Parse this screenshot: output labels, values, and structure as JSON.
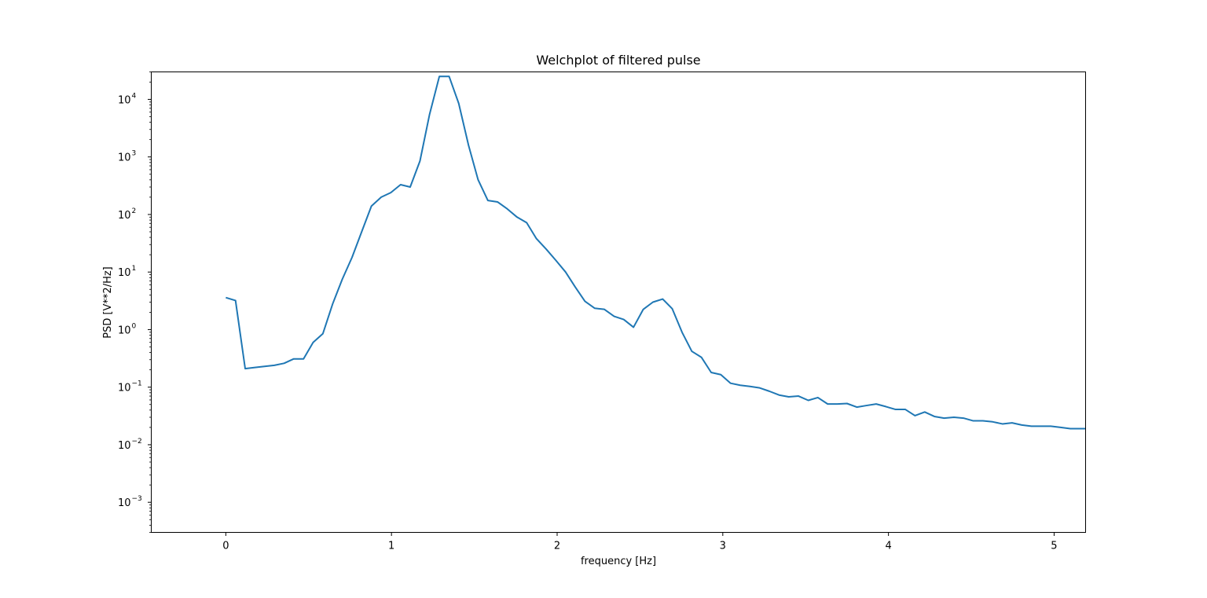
{
  "chart_data": {
    "type": "line",
    "title": "Welchplot of filtered pulse",
    "xlabel": "frequency [Hz]",
    "ylabel": "PSD [V**2/Hz]",
    "xlim": [
      -0.45,
      5.19
    ],
    "ylim": [
      0.0003,
      30000
    ],
    "yscale": "log",
    "grid": false,
    "x_ticks": [
      0,
      1,
      2,
      3,
      4,
      5
    ],
    "x_tick_labels": [
      "0",
      "1",
      "2",
      "3",
      "4",
      "5"
    ],
    "y_ticks": [
      0.001,
      0.01,
      0.1,
      1,
      10,
      100,
      1000,
      10000
    ],
    "y_tick_labels": [
      {
        "base": "10",
        "exp": "−3"
      },
      {
        "base": "10",
        "exp": "−2"
      },
      {
        "base": "10",
        "exp": "−1"
      },
      {
        "base": "10",
        "exp": "0"
      },
      {
        "base": "10",
        "exp": "1"
      },
      {
        "base": "10",
        "exp": "2"
      },
      {
        "base": "10",
        "exp": "3"
      },
      {
        "base": "10",
        "exp": "4"
      }
    ],
    "series": [
      {
        "color": "#1f77b4",
        "x": [
          0,
          0.0586,
          0.117,
          0.176,
          0.234,
          0.293,
          0.352,
          0.41,
          0.469,
          0.527,
          0.586,
          0.645,
          0.703,
          0.762,
          0.82,
          0.879,
          0.938,
          0.996,
          1.055,
          1.113,
          1.172,
          1.23,
          1.289,
          1.348,
          1.406,
          1.465,
          1.523,
          1.582,
          1.641,
          1.699,
          1.758,
          1.816,
          1.875,
          1.934,
          1.992,
          2.051,
          2.109,
          2.168,
          2.227,
          2.285,
          2.344,
          2.402,
          2.461,
          2.52,
          2.578,
          2.637,
          2.695,
          2.754,
          2.813,
          2.871,
          2.93,
          2.988,
          3.047,
          3.105,
          3.164,
          3.223,
          3.281,
          3.34,
          3.398,
          3.457,
          3.516,
          3.574,
          3.633,
          3.691,
          3.75,
          3.809,
          3.867,
          3.926,
          3.984,
          4.043,
          4.102,
          4.16,
          4.219,
          4.277,
          4.336,
          4.395,
          4.453,
          4.512,
          4.57,
          4.629,
          4.688,
          4.746,
          4.805,
          4.863,
          4.922,
          4.98,
          5.039,
          5.098,
          5.156,
          5.19
        ],
        "y": [
          3.6,
          3.2,
          0.21,
          0.22,
          0.23,
          0.24,
          0.26,
          0.31,
          0.31,
          0.6,
          0.85,
          2.8,
          7.5,
          18,
          50,
          140,
          200,
          240,
          330,
          300,
          850,
          5500,
          25000,
          25000,
          8500,
          1600,
          400,
          175,
          165,
          125,
          90,
          72,
          38,
          25,
          16,
          10,
          5.5,
          3.1,
          2.35,
          2.25,
          1.7,
          1.5,
          1.1,
          2.25,
          3.0,
          3.4,
          2.3,
          0.9,
          0.42,
          0.33,
          0.18,
          0.165,
          0.117,
          0.108,
          0.103,
          0.097,
          0.085,
          0.073,
          0.068,
          0.07,
          0.059,
          0.066,
          0.051,
          0.051,
          0.052,
          0.045,
          0.048,
          0.051,
          0.046,
          0.041,
          0.041,
          0.032,
          0.037,
          0.031,
          0.029,
          0.03,
          0.029,
          0.026,
          0.026,
          0.025,
          0.023,
          0.024,
          0.022,
          0.021,
          0.021,
          0.021,
          0.02,
          0.019,
          0.019,
          0.019
        ]
      }
    ]
  }
}
